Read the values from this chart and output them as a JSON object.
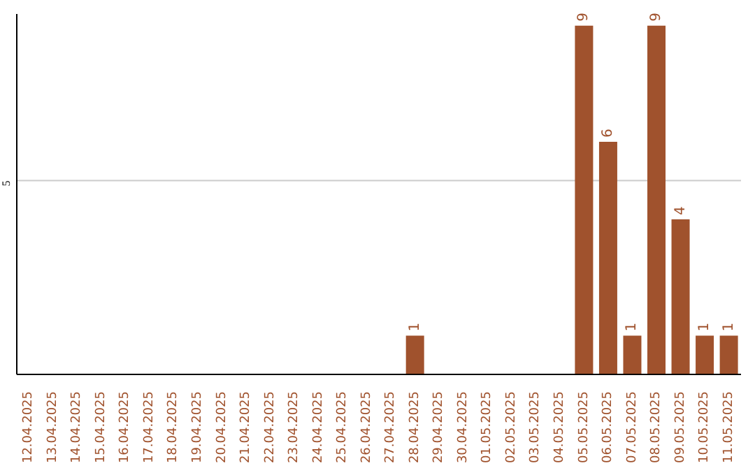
{
  "chart_data": {
    "type": "bar",
    "categories": [
      "12.04.2025",
      "13.04.2025",
      "14.04.2025",
      "15.04.2025",
      "16.04.2025",
      "17.04.2025",
      "18.04.2025",
      "19.04.2025",
      "20.04.2025",
      "21.04.2025",
      "22.04.2025",
      "23.04.2025",
      "24.04.2025",
      "25.04.2025",
      "26.04.2025",
      "27.04.2025",
      "28.04.2025",
      "29.04.2025",
      "30.04.2025",
      "01.05.2025",
      "02.05.2025",
      "03.05.2025",
      "04.05.2025",
      "05.05.2025",
      "06.05.2025",
      "07.05.2025",
      "08.05.2025",
      "09.05.2025",
      "10.05.2025",
      "11.05.2025"
    ],
    "values": [
      null,
      null,
      null,
      null,
      null,
      null,
      null,
      null,
      null,
      null,
      null,
      null,
      null,
      null,
      null,
      null,
      1,
      null,
      null,
      null,
      null,
      null,
      null,
      9,
      6,
      1,
      9,
      4,
      1,
      1
    ],
    "color": "#a0522d",
    "ylim": [
      0,
      9.3
    ],
    "yticks": [
      5
    ],
    "grid": "y",
    "data_labels": true
  }
}
